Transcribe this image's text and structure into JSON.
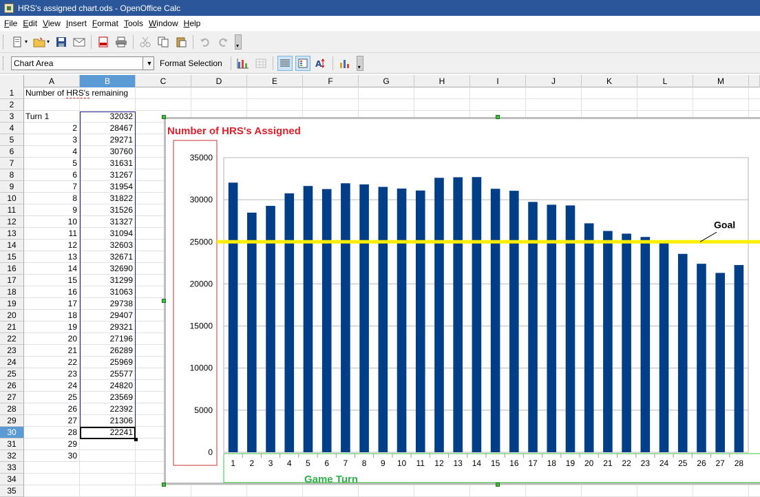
{
  "window": {
    "title": "HRS's assigned chart.ods - OpenOffice Calc"
  },
  "menu": [
    {
      "label": "File",
      "u": "F",
      "rest": "ile"
    },
    {
      "label": "Edit",
      "u": "E",
      "rest": "dit"
    },
    {
      "label": "View",
      "u": "V",
      "rest": "iew"
    },
    {
      "label": "Insert",
      "u": "I",
      "rest": "nsert"
    },
    {
      "label": "Format",
      "u": "F",
      "rest": "ormat",
      "pre": ""
    },
    {
      "label": "Tools",
      "u": "T",
      "rest": "ools"
    },
    {
      "label": "Window",
      "u": "W",
      "rest": "indow"
    },
    {
      "label": "Help",
      "u": "H",
      "rest": "elp"
    }
  ],
  "format_toolbar": {
    "name_box_value": "Chart Area",
    "format_selection_label": "Format Selection"
  },
  "columns": [
    "A",
    "B",
    "C",
    "D",
    "E",
    "F",
    "G",
    "H",
    "I",
    "J",
    "K",
    "L",
    "M"
  ],
  "selected_column": "B",
  "rows": [
    1,
    2,
    3,
    4,
    5,
    6,
    7,
    8,
    9,
    10,
    11,
    12,
    13,
    14,
    15,
    16,
    17,
    18,
    19,
    20,
    21,
    22,
    23,
    24,
    25,
    26,
    27,
    28,
    29,
    30,
    31,
    32,
    33,
    34,
    35
  ],
  "selected_row": 30,
  "sheet": {
    "A1": "Number of HRS's remaining",
    "A3": "Turn 1",
    "colA_turns": [
      2,
      3,
      4,
      5,
      6,
      7,
      8,
      9,
      10,
      11,
      12,
      13,
      14,
      15,
      16,
      17,
      18,
      19,
      20,
      21,
      22,
      23,
      24,
      25,
      26,
      27,
      28,
      29,
      30
    ],
    "colB_values": [
      32032,
      28467,
      29271,
      30760,
      31631,
      31267,
      31954,
      31822,
      31526,
      31327,
      31094,
      32603,
      32671,
      32690,
      31299,
      31063,
      29738,
      29407,
      29321,
      27196,
      26289,
      25969,
      25577,
      24820,
      23569,
      22392,
      21306,
      22241
    ]
  },
  "chart_data": {
    "type": "bar",
    "title": "Number of HRS's Assigned",
    "xlabel": "Game Turn",
    "ylabel": "",
    "categories": [
      "1",
      "2",
      "3",
      "4",
      "5",
      "6",
      "7",
      "8",
      "9",
      "10",
      "11",
      "12",
      "13",
      "14",
      "15",
      "16",
      "17",
      "18",
      "19",
      "20",
      "21",
      "22",
      "23",
      "24",
      "25",
      "26",
      "27",
      "28"
    ],
    "values": [
      32032,
      28467,
      29271,
      30760,
      31631,
      31267,
      31954,
      31822,
      31526,
      31327,
      31094,
      32603,
      32671,
      32690,
      31299,
      31063,
      29738,
      29407,
      29321,
      27196,
      26289,
      25969,
      25577,
      24820,
      23569,
      22392,
      21306,
      22241
    ],
    "ylim": [
      0,
      35000
    ],
    "yticks": [
      0,
      5000,
      10000,
      15000,
      20000,
      25000,
      30000,
      35000
    ],
    "grid": true,
    "bar_color": "#003f87",
    "goal": {
      "label": "Goal",
      "value": 25000,
      "color": "#ffee00"
    },
    "title_color": "#e0202a",
    "xlabel_color": "#2eb24a"
  }
}
